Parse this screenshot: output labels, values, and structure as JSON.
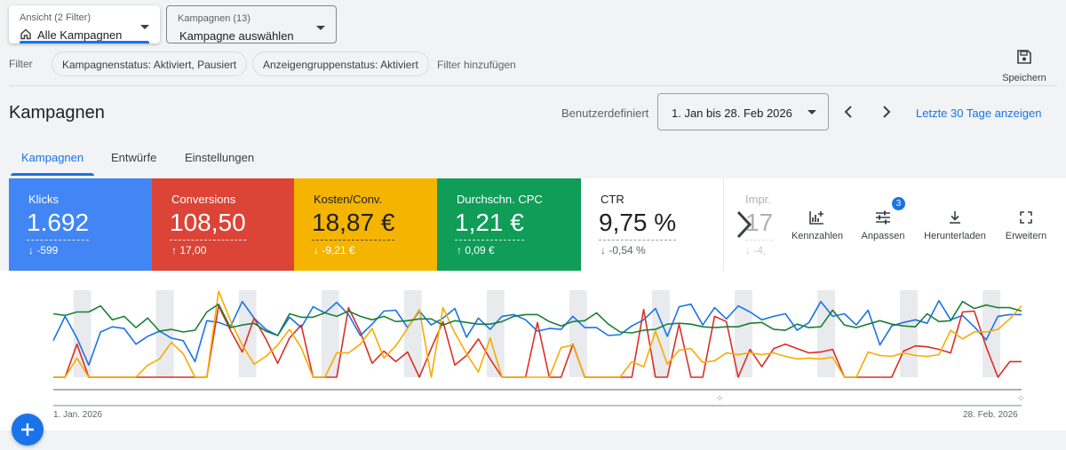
{
  "view_dropdown": {
    "label": "Ansicht (2 Filter)",
    "value": "Alle Kampagnen",
    "icon": "home-icon"
  },
  "campaign_dropdown": {
    "label": "Kampagnen (13)",
    "value": "Kampagne auswählen"
  },
  "filter_bar": {
    "label": "Filter",
    "chips": [
      "Kampagnenstatus: Aktiviert, Pausiert",
      "Anzeigengruppenstatus: Aktiviert"
    ],
    "add_filter": "Filter hinzufügen"
  },
  "save": {
    "label": "Speichern",
    "icon": "save-icon"
  },
  "page_title": "Kampagnen",
  "date_range": {
    "mode": "Benutzerdefiniert",
    "value": "1. Jan bis 28. Feb 2026",
    "last30": "Letzte 30 Tage anzeigen"
  },
  "tabs": [
    {
      "label": "Kampagnen",
      "active": true
    },
    {
      "label": "Entwürfe",
      "active": false
    },
    {
      "label": "Einstellungen",
      "active": false
    }
  ],
  "metrics": [
    {
      "title": "Klicks",
      "value": "1.692",
      "delta": "↓ -599",
      "color": "#4285f4"
    },
    {
      "title": "Conversions",
      "value": "108,50",
      "delta": "↑ 17,00",
      "color": "#db4437"
    },
    {
      "title": "Kosten/Conv.",
      "value": "18,87 €",
      "delta": "↓ -9,21 €",
      "color": "#f4b400"
    },
    {
      "title": "Durchschn. CPC",
      "value": "1,21 €",
      "delta": "↑ 0,09 €",
      "color": "#0f9d58"
    },
    {
      "title": "CTR",
      "value": "9,75 %",
      "delta": "↓ -0,54 %",
      "color": "#ffffff"
    },
    {
      "title": "Impr.",
      "value": "17",
      "delta": "↓ -4,",
      "color": "#ffffff"
    }
  ],
  "tools": [
    {
      "label": "Kennzahlen",
      "icon": "add-chart-icon"
    },
    {
      "label": "Anpassen",
      "icon": "tune-icon",
      "badge": "3"
    },
    {
      "label": "Herunterladen",
      "icon": "download-icon"
    },
    {
      "label": "Erweitern",
      "icon": "fullscreen-icon"
    }
  ],
  "chart_data": {
    "type": "line",
    "x_start": "1. Jan. 2026",
    "x_end": "28. Feb. 2026",
    "grid": false,
    "series": [
      {
        "name": "Klicks",
        "color": "#1a73e8",
        "values": [
          42,
          70,
          45,
          14,
          52,
          58,
          56,
          38,
          47,
          53,
          45,
          42,
          18,
          65,
          63,
          58,
          87,
          68,
          55,
          48,
          69,
          57,
          81,
          74,
          86,
          72,
          48,
          61,
          76,
          77,
          57,
          76,
          60,
          68,
          79,
          46,
          68,
          55,
          70,
          72,
          66,
          53,
          56,
          55,
          70,
          57,
          57,
          48,
          49,
          59,
          66,
          79,
          47,
          81,
          84,
          60,
          80,
          67,
          82,
          75,
          66,
          70,
          73,
          54,
          63,
          87,
          70,
          73,
          60,
          77,
          37,
          59,
          63,
          66,
          62,
          88,
          66,
          71,
          58,
          43,
          70,
          72,
          72
        ]
      },
      {
        "name": "Conversions",
        "color": "#d93025",
        "values": [
          0,
          0,
          38,
          0,
          0,
          0,
          0,
          0,
          0,
          0,
          0,
          0,
          0,
          0,
          82,
          54,
          29,
          68,
          44,
          16,
          45,
          60,
          0,
          0,
          0,
          80,
          52,
          16,
          30,
          18,
          29,
          0,
          33,
          64,
          14,
          25,
          44,
          21,
          0,
          0,
          0,
          63,
          0,
          0,
          38,
          0,
          0,
          0,
          0,
          0,
          78,
          0,
          0,
          61,
          0,
          0,
          70,
          64,
          0,
          32,
          12,
          33,
          38,
          33,
          28,
          29,
          32,
          0,
          0,
          0,
          0,
          0,
          30,
          36,
          35,
          32,
          28,
          75,
          76,
          35,
          0,
          18,
          18
        ]
      },
      {
        "name": "Kosten/Conv.",
        "color": "#f9ab00",
        "values": [
          0,
          0,
          22,
          0,
          0,
          0,
          0,
          0,
          14,
          21,
          40,
          27,
          0,
          0,
          99,
          65,
          37,
          15,
          24,
          37,
          55,
          34,
          0,
          0,
          28,
          28,
          38,
          56,
          22,
          36,
          56,
          78,
          0,
          80,
          51,
          27,
          6,
          45,
          0,
          0,
          0,
          0,
          0,
          34,
          37,
          0,
          0,
          0,
          0,
          18,
          12,
          53,
          15,
          31,
          33,
          17,
          19,
          28,
          26,
          28,
          26,
          28,
          24,
          21,
          22,
          21,
          23,
          0,
          0,
          29,
          25,
          24,
          28,
          25,
          24,
          26,
          54,
          44,
          52,
          52,
          55,
          67,
          82
        ]
      },
      {
        "name": "Durchschn. CPC",
        "color": "#188038",
        "values": [
          73,
          71,
          75,
          75,
          82,
          66,
          70,
          57,
          68,
          53,
          55,
          52,
          54,
          75,
          84,
          57,
          60,
          62,
          53,
          48,
          73,
          69,
          69,
          74,
          70,
          76,
          70,
          66,
          70,
          64,
          65,
          67,
          67,
          60,
          65,
          63,
          61,
          61,
          64,
          70,
          72,
          72,
          64,
          59,
          64,
          65,
          74,
          61,
          52,
          51,
          54,
          55,
          61,
          62,
          61,
          58,
          57,
          58,
          58,
          62,
          63,
          55,
          54,
          61,
          57,
          58,
          77,
          60,
          57,
          61,
          65,
          61,
          59,
          58,
          73,
          64,
          65,
          87,
          79,
          83,
          80,
          80,
          76
        ]
      }
    ]
  }
}
